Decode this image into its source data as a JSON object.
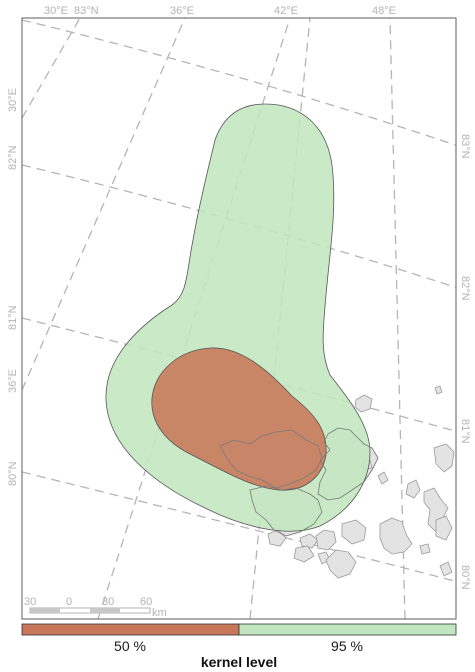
{
  "graticule": {
    "top": [
      "30°E",
      "83°N",
      "36°E",
      "42°E",
      "48°E"
    ],
    "left": [
      "30°E",
      "82°N",
      "81°N",
      "36°E",
      "80°N"
    ],
    "right": [
      "83°N",
      "82°N",
      "81°N",
      "80°N"
    ]
  },
  "scalebar": {
    "ticks": [
      "30",
      "0",
      "30",
      "60"
    ],
    "unit": "km"
  },
  "legend": {
    "title": "kernel level",
    "items": [
      {
        "label": "50 %",
        "color": "#c8775a"
      },
      {
        "label": "95 %",
        "color": "#c2e6bf"
      }
    ]
  },
  "colors": {
    "land": "#e3e3e3",
    "frame": "#777777",
    "graticule": "#b5b5b5"
  }
}
